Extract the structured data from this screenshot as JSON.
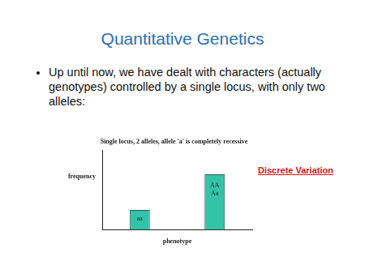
{
  "title": "Quantitative Genetics",
  "bullets": [
    "Up until now, we have dealt with characters (actually genotypes) controlled by a single locus, with only two alleles:"
  ],
  "annotation": "Discrete Variation",
  "chart_data": {
    "type": "bar",
    "title": "Single locus, 2 alleles, allele 'a' is completely recessive",
    "x_label": "phenotype",
    "y_label": "frequency",
    "categories": [
      [
        "aa"
      ],
      [
        "AA",
        "Aa"
      ]
    ],
    "values": [
      1,
      2.8
    ],
    "ylim": [
      0,
      4
    ],
    "color": "#33c3a6",
    "grid": false,
    "tick_labels": false
  }
}
